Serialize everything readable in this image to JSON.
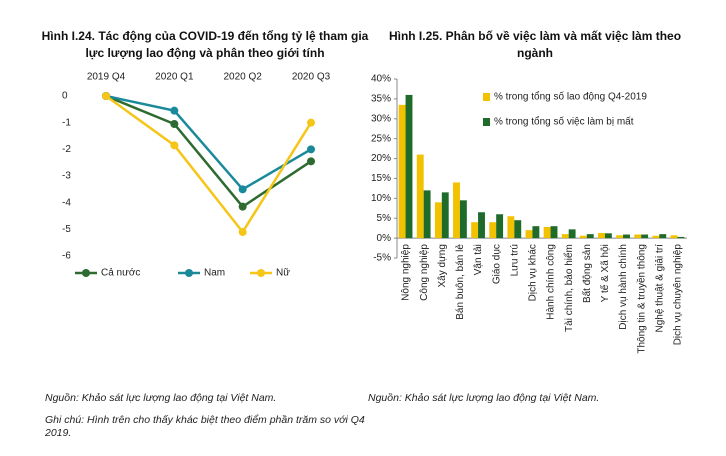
{
  "chart_data": [
    {
      "type": "line",
      "title": "Hình I.24. Tác động của COVID-19 đến tổng tỷ lệ tham gia lực lượng lao động và phân theo giới tính",
      "categories": [
        "2019 Q4",
        "2020 Q1",
        "2020 Q2",
        "2020 Q3"
      ],
      "series": [
        {
          "name": "Cả nước",
          "color": "#2e6b30",
          "values": [
            0,
            -1.05,
            -4.15,
            -2.45
          ]
        },
        {
          "name": "Nam",
          "color": "#1a8a9a",
          "values": [
            0,
            -0.55,
            -3.5,
            -2.0
          ]
        },
        {
          "name": "Nữ",
          "color": "#f5c518",
          "values": [
            0,
            -1.85,
            -5.1,
            -1.0
          ]
        }
      ],
      "ylim": [
        -6,
        0
      ],
      "yticks": [
        0,
        -1,
        -2,
        -3,
        -4,
        -5,
        -6
      ],
      "legend": "bottom",
      "source": "Nguồn: Khảo sát lực lượng lao động tại Việt Nam.",
      "note": "Ghi chú: Hình trên cho thấy khác biệt theo điểm phần trăm so với Q4 2019."
    },
    {
      "type": "bar",
      "title": "Hình I.25. Phân bố về việc làm và mất việc làm theo ngành",
      "categories": [
        "Nông nghiệp",
        "Công nghiệp",
        "Xây dựng",
        "Bán buôn, bán lẻ",
        "Vận tải",
        "Giáo dục",
        "Lưu trú",
        "Dịch vụ khác",
        "Hành chính công",
        "Tài chính, bảo hiểm",
        "Bất động sản",
        "Y tế & Xã hội",
        "Dịch vụ hành chính",
        "Thông tin & truyền thông",
        "Nghệ thuật & giải trí",
        "Dịch vụ chuyên nghiệp"
      ],
      "series": [
        {
          "name": "% trong tổng số lao động Q4-2019",
          "color": "#f2c200",
          "values": [
            33.5,
            21,
            9,
            14,
            4,
            4,
            5.5,
            2,
            2.8,
            1,
            0.6,
            1.3,
            0.7,
            0.9,
            0.6,
            0.7
          ]
        },
        {
          "name": "% trong tổng số việc làm bị mất",
          "color": "#1e6b2a",
          "values": [
            36,
            12,
            11.5,
            9.5,
            6.5,
            6,
            4.5,
            3,
            3,
            2.2,
            1,
            1.2,
            0.9,
            0.9,
            1,
            0.3
          ]
        }
      ],
      "ylim": [
        -5,
        40
      ],
      "yticks": [
        {
          "value": -5,
          "label": "-5%"
        },
        {
          "value": 0,
          "label": "0%"
        },
        {
          "value": 5,
          "label": "5%"
        },
        {
          "value": 10,
          "label": "10%"
        },
        {
          "value": 15,
          "label": "15%"
        },
        {
          "value": 20,
          "label": "20%"
        },
        {
          "value": 25,
          "label": "25%"
        },
        {
          "value": 30,
          "label": "30%"
        },
        {
          "value": 35,
          "label": "35%"
        },
        {
          "value": 40,
          "label": "40%"
        }
      ],
      "legend": "top-right",
      "source": "Nguồn: Khảo sát lực lượng lao động tại Việt Nam."
    }
  ]
}
